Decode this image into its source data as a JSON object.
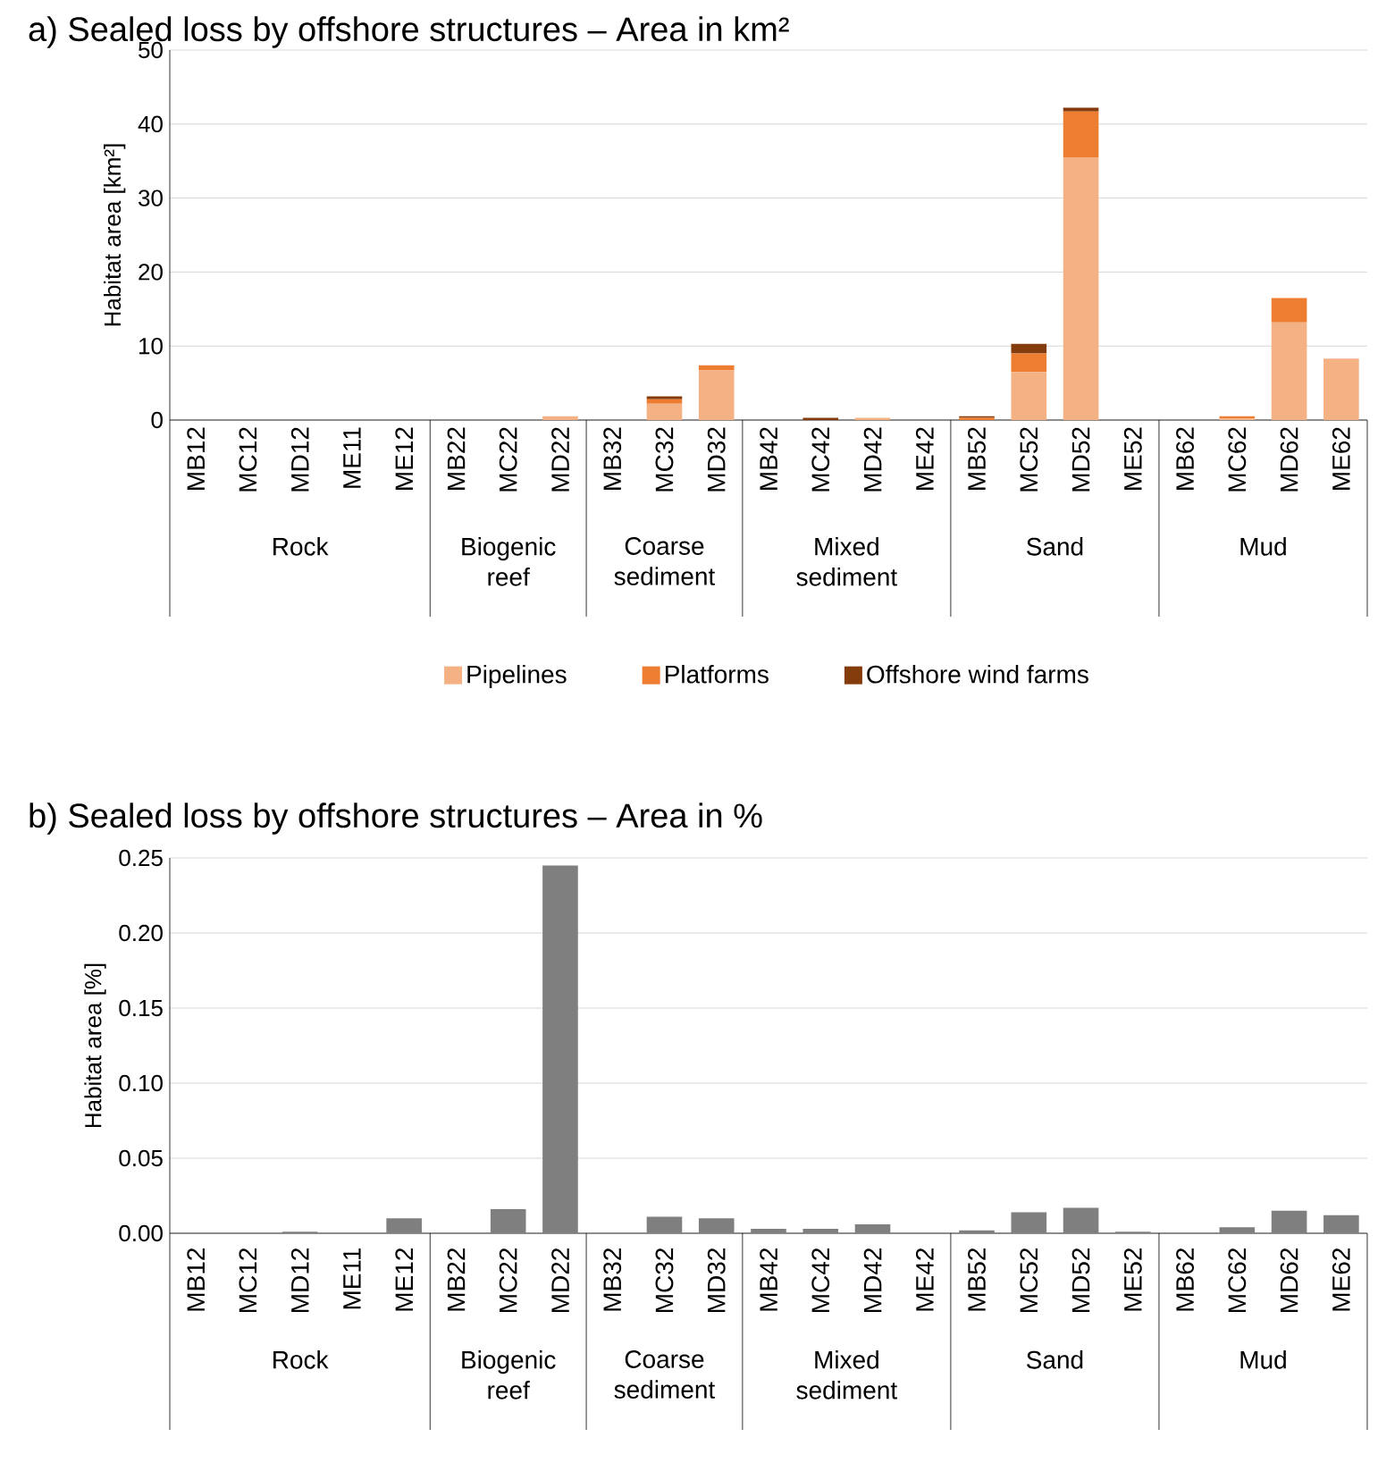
{
  "chart_data": [
    {
      "type": "bar",
      "stacked": true,
      "title": "a) Sealed loss by offshore structures – Area in km²",
      "ylabel": "Habitat area [km²]",
      "categories": [
        "MB12",
        "MC12",
        "MD12",
        "ME11",
        "ME12",
        "MB22",
        "MC22",
        "MD22",
        "MB32",
        "MC32",
        "MD32",
        "MB42",
        "MC42",
        "MD42",
        "ME42",
        "MB52",
        "MC52",
        "MD52",
        "ME52",
        "MB62",
        "MC62",
        "MD62",
        "ME62"
      ],
      "series": [
        {
          "name": "Pipelines",
          "color": "#f4b183",
          "values": [
            0,
            0,
            0,
            0,
            0,
            0,
            0,
            0.5,
            0,
            2.2,
            6.7,
            0,
            0,
            0.3,
            0,
            0,
            6.5,
            35.5,
            0,
            0,
            0.2,
            13.2,
            8.3
          ]
        },
        {
          "name": "Platforms",
          "color": "#ed7d31",
          "values": [
            0,
            0,
            0,
            0,
            0,
            0,
            0,
            0,
            0,
            0.6,
            0.7,
            0,
            0,
            0,
            0,
            0.3,
            2.5,
            6.2,
            0,
            0,
            0.3,
            3.3,
            0
          ]
        },
        {
          "name": "Offshore wind farms",
          "color": "#843c0c",
          "values": [
            0,
            0,
            0,
            0,
            0,
            0,
            0,
            0,
            0,
            0.4,
            0,
            0,
            0.3,
            0,
            0,
            0.2,
            1.3,
            0.5,
            0,
            0,
            0,
            0,
            0
          ]
        }
      ],
      "ylim": [
        0,
        50
      ],
      "yticks": [
        0,
        10,
        20,
        30,
        40,
        50
      ],
      "grid": "y",
      "legend": "bottom",
      "annotations": [
        "Rock",
        "Biogenic reef",
        "Coarse sediment",
        "Mixed sediment",
        "Sand",
        "Mud"
      ]
    },
    {
      "type": "bar",
      "title": "b) Sealed loss by offshore structures – Area in %",
      "ylabel": "Habitat area [%]",
      "categories": [
        "MB12",
        "MC12",
        "MD12",
        "ME11",
        "ME12",
        "MB22",
        "MC22",
        "MD22",
        "MB32",
        "MC32",
        "MD32",
        "MB42",
        "MC42",
        "MD42",
        "ME42",
        "MB52",
        "MC52",
        "MD52",
        "ME52",
        "MB62",
        "MC62",
        "MD62",
        "ME62"
      ],
      "values": [
        0,
        0,
        0.001,
        0,
        0.01,
        0,
        0.016,
        0.245,
        0,
        0.011,
        0.01,
        0.003,
        0.003,
        0.006,
        0,
        0.002,
        0.014,
        0.017,
        0.001,
        0,
        0.004,
        0.015,
        0.012
      ],
      "color": "#7f7f7f",
      "ylim": [
        0,
        0.25
      ],
      "yticks": [
        {
          "value": 0,
          "label": "0.00"
        },
        {
          "value": 0.05,
          "label": "0.05"
        },
        {
          "value": 0.1,
          "label": "0.10"
        },
        {
          "value": 0.15,
          "label": "0.15"
        },
        {
          "value": 0.2,
          "label": "0.20"
        },
        {
          "value": 0.25,
          "label": "0.25"
        }
      ],
      "grid": "y",
      "annotations": [
        "Rock",
        "Biogenic reef",
        "Coarse sediment",
        "Mixed sediment",
        "Sand",
        "Mud"
      ]
    }
  ]
}
